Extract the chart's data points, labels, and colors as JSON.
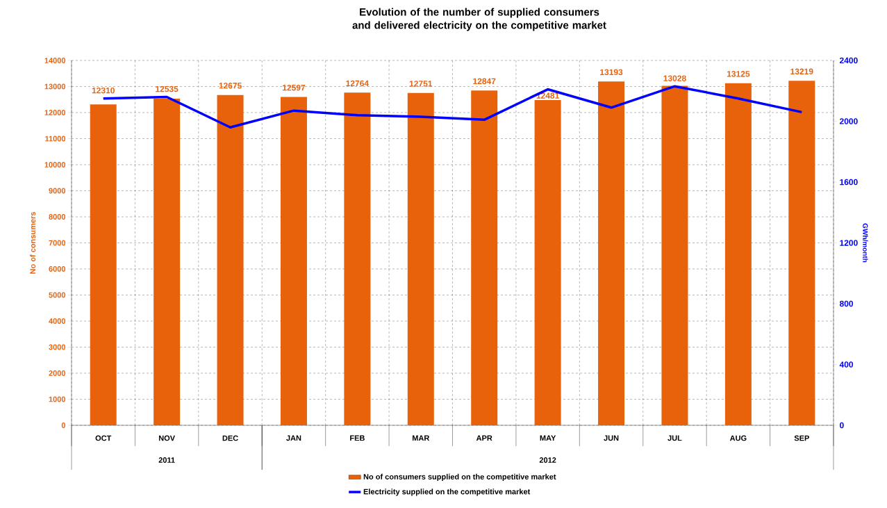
{
  "chart_data": {
    "type": "bar",
    "title": "Evolution of the number of supplied consumers and delivered electricity  on the competitive market",
    "categories": [
      "OCT",
      "NOV",
      "DEC",
      "JAN",
      "FEB",
      "MAR",
      "APR",
      "MAY",
      "JUN",
      "JUL",
      "AUG",
      "SEP"
    ],
    "series": [
      {
        "name": "No of  consumers supplied on the competitive market",
        "color": "#e8620c",
        "values": [
          12310,
          12535,
          12675,
          12597,
          12764,
          12751,
          12847,
          12481,
          13193,
          13028,
          13125,
          13219
        ],
        "value_labels": [
          "12310",
          "12535",
          "12675",
          "12597",
          "12764",
          "12751",
          "12847",
          "12481",
          "13193",
          "13028",
          "13125",
          "13219"
        ]
      },
      {
        "name": "Electricity supplied on the competitive market",
        "type": "line",
        "axis": "y2",
        "color": "#0000ff",
        "values": [
          2150,
          2160,
          1960,
          2070,
          2040,
          2030,
          2010,
          2210,
          2090,
          2230,
          2150,
          2060
        ]
      }
    ],
    "ylabel": "No of consumers",
    "y2label": "GWh/month",
    "ylim": [
      0,
      14000
    ],
    "yticks": [
      0,
      1000,
      2000,
      3000,
      4000,
      5000,
      6000,
      7000,
      8000,
      9000,
      10000,
      11000,
      12000,
      13000,
      14000
    ],
    "y2lim": [
      0,
      2400
    ],
    "y2ticks": [
      0,
      400,
      800,
      1200,
      1600,
      2000,
      2400
    ],
    "grid": true,
    "legend": "bottom",
    "annotations": [
      "2011",
      "2012"
    ]
  }
}
